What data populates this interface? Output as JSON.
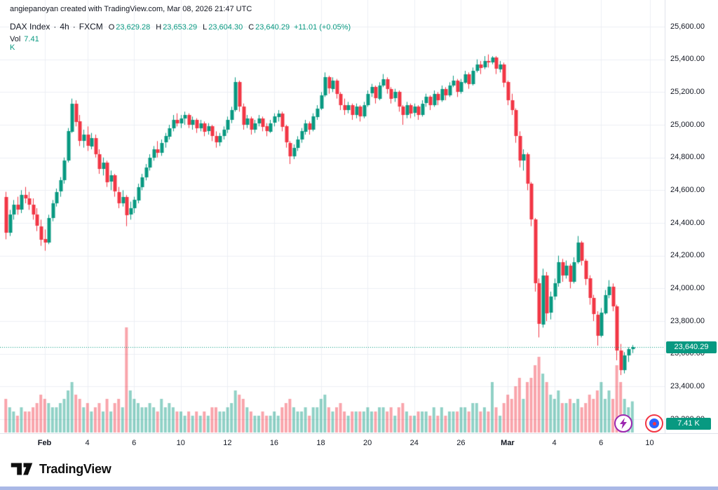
{
  "attribution": "angiepanoyan created with TradingView.com, Mar 08, 2026 21:47 UTC",
  "legend": {
    "symbol": "DAX Index",
    "separator": "·",
    "interval": "4h",
    "exchange": "FXCM",
    "ohlc": [
      {
        "label": "O",
        "value": "23,629.28"
      },
      {
        "label": "H",
        "value": "23,653.29"
      },
      {
        "label": "L",
        "value": "23,604.30"
      },
      {
        "label": "C",
        "value": "23,640.29"
      }
    ],
    "change": "+11.01 (+0.05%)",
    "volume_label": "Vol",
    "volume_value": "7.41 K"
  },
  "footer": {
    "brand": "TradingView"
  },
  "colors": {
    "up": "#089981",
    "down": "#f23645",
    "vol_up": "rgba(8,153,129,0.45)",
    "vol_down": "rgba(242,54,69,0.45)",
    "grid": "#eceff4",
    "axis_line": "#e0e3eb",
    "badge": "#089981"
  },
  "chart_data": {
    "type": "candlestick",
    "title": "DAX Index · 4h · FXCM",
    "last_open": 23629.28,
    "last_high": 23653.29,
    "last_low": 23604.3,
    "last_close": 23640.29,
    "last_change": "+11.01 (+0.05%)",
    "last_close_label": "23,640.29",
    "volume_badge_label": "7.41 K",
    "last_volume_k": 7.41,
    "ylim": [
      23200,
      25600
    ],
    "volume_unit": "K",
    "price_ticks": {
      "values": [
        25600,
        25400,
        25200,
        25000,
        24800,
        24600,
        24400,
        24200,
        24000,
        23800,
        23600,
        23400,
        23200
      ],
      "labels": [
        "25,600.00",
        "25,400.00",
        "25,200.00",
        "25,000.00",
        "24,800.00",
        "24,600.00",
        "24,400.00",
        "24,200.00",
        "24,000.00",
        "23,800.00",
        "23,600.00",
        "23,400.00",
        "23,200.00"
      ]
    },
    "time_ticks": [
      {
        "label": "Feb",
        "bar": 10,
        "major": true
      },
      {
        "label": "4",
        "bar": 21
      },
      {
        "label": "6",
        "bar": 33
      },
      {
        "label": "10",
        "bar": 45
      },
      {
        "label": "12",
        "bar": 57
      },
      {
        "label": "16",
        "bar": 69
      },
      {
        "label": "18",
        "bar": 81
      },
      {
        "label": "20",
        "bar": 93
      },
      {
        "label": "24",
        "bar": 105
      },
      {
        "label": "26",
        "bar": 117
      },
      {
        "label": "Mar",
        "bar": 129,
        "major": true
      },
      {
        "label": "4",
        "bar": 141
      },
      {
        "label": "6",
        "bar": 153
      },
      {
        "label": "10",
        "bar": 165.5
      }
    ],
    "candles_format": [
      "open",
      "high",
      "low",
      "close",
      "volume_k"
    ],
    "candles": [
      [
        24560,
        24590,
        24300,
        24340,
        8
      ],
      [
        24340,
        24480,
        24320,
        24450,
        6
      ],
      [
        24450,
        24540,
        24420,
        24510,
        5
      ],
      [
        24510,
        24560,
        24450,
        24480,
        4
      ],
      [
        24480,
        24600,
        24460,
        24570,
        6
      ],
      [
        24570,
        24620,
        24520,
        24550,
        5
      ],
      [
        24550,
        24590,
        24480,
        24510,
        5
      ],
      [
        24510,
        24550,
        24420,
        24450,
        6
      ],
      [
        24450,
        24490,
        24350,
        24380,
        7
      ],
      [
        24380,
        24420,
        24260,
        24300,
        9
      ],
      [
        24300,
        24360,
        24230,
        24280,
        8
      ],
      [
        24280,
        24450,
        24270,
        24430,
        7
      ],
      [
        24430,
        24540,
        24410,
        24520,
        6
      ],
      [
        24520,
        24610,
        24500,
        24590,
        6
      ],
      [
        24590,
        24680,
        24560,
        24660,
        7
      ],
      [
        24660,
        24800,
        24640,
        24780,
        8
      ],
      [
        24780,
        24980,
        24770,
        24960,
        10
      ],
      [
        24960,
        25160,
        24950,
        25130,
        12
      ],
      [
        25130,
        25150,
        24990,
        25020,
        9
      ],
      [
        25020,
        25060,
        24870,
        24900,
        8
      ],
      [
        24900,
        24970,
        24860,
        24940,
        6
      ],
      [
        24940,
        24990,
        24840,
        24870,
        7
      ],
      [
        24870,
        24950,
        24850,
        24920,
        5
      ],
      [
        24920,
        24940,
        24800,
        24820,
        6
      ],
      [
        24820,
        24850,
        24700,
        24730,
        7
      ],
      [
        24730,
        24800,
        24690,
        24770,
        5
      ],
      [
        24770,
        24780,
        24620,
        24650,
        8
      ],
      [
        24650,
        24720,
        24600,
        24690,
        5
      ],
      [
        24690,
        24700,
        24560,
        24590,
        7
      ],
      [
        24590,
        24620,
        24490,
        24520,
        8
      ],
      [
        24520,
        24600,
        24500,
        24560,
        6
      ],
      [
        24560,
        24570,
        24380,
        24450,
        25
      ],
      [
        24450,
        24530,
        24420,
        24490,
        10
      ],
      [
        24490,
        24560,
        24460,
        24540,
        8
      ],
      [
        24540,
        24640,
        24520,
        24620,
        7
      ],
      [
        24620,
        24700,
        24600,
        24680,
        6
      ],
      [
        24680,
        24760,
        24660,
        24740,
        6
      ],
      [
        24740,
        24820,
        24720,
        24800,
        7
      ],
      [
        24800,
        24870,
        24780,
        24850,
        6
      ],
      [
        24850,
        24900,
        24800,
        24830,
        5
      ],
      [
        24830,
        24910,
        24810,
        24890,
        8
      ],
      [
        24890,
        24950,
        24860,
        24930,
        6
      ],
      [
        24930,
        25000,
        24910,
        24980,
        7
      ],
      [
        24980,
        25060,
        24960,
        25030,
        6
      ],
      [
        25030,
        25070,
        24990,
        25010,
        5
      ],
      [
        25010,
        25060,
        24980,
        25040,
        5
      ],
      [
        25040,
        25080,
        25000,
        25060,
        4
      ],
      [
        25060,
        25070,
        24980,
        25000,
        5
      ],
      [
        25000,
        25050,
        24970,
        25030,
        4
      ],
      [
        25030,
        25040,
        24950,
        24980,
        5
      ],
      [
        24980,
        25030,
        24960,
        25010,
        4
      ],
      [
        25010,
        25020,
        24930,
        24960,
        5
      ],
      [
        24960,
        25010,
        24940,
        24990,
        4
      ],
      [
        24990,
        25000,
        24900,
        24930,
        6
      ],
      [
        24930,
        24960,
        24860,
        24890,
        6
      ],
      [
        24890,
        24950,
        24870,
        24930,
        5
      ],
      [
        24930,
        24990,
        24910,
        24970,
        5
      ],
      [
        24970,
        25050,
        24950,
        25030,
        6
      ],
      [
        25030,
        25110,
        25010,
        25090,
        7
      ],
      [
        25090,
        25290,
        25080,
        25260,
        10
      ],
      [
        25260,
        25270,
        25080,
        25110,
        9
      ],
      [
        25110,
        25130,
        24970,
        25000,
        8
      ],
      [
        25000,
        25060,
        24980,
        25040,
        6
      ],
      [
        25040,
        25050,
        24940,
        24970,
        5
      ],
      [
        24970,
        25030,
        24950,
        25010,
        4
      ],
      [
        25010,
        25060,
        24990,
        25040,
        4
      ],
      [
        25040,
        25050,
        24960,
        24990,
        5
      ],
      [
        24990,
        25010,
        24930,
        24960,
        4
      ],
      [
        24960,
        25030,
        24950,
        25010,
        4
      ],
      [
        25010,
        25070,
        24990,
        25050,
        5
      ],
      [
        25050,
        25090,
        25020,
        25070,
        4
      ],
      [
        25070,
        25080,
        24960,
        24990,
        6
      ],
      [
        24990,
        25000,
        24860,
        24890,
        7
      ],
      [
        24890,
        24900,
        24760,
        24810,
        8
      ],
      [
        24810,
        24880,
        24790,
        24860,
        6
      ],
      [
        24860,
        24930,
        24840,
        24910,
        5
      ],
      [
        24910,
        24980,
        24890,
        24960,
        5
      ],
      [
        24960,
        25030,
        24940,
        25010,
        6
      ],
      [
        25010,
        25020,
        24940,
        24970,
        4
      ],
      [
        24970,
        25070,
        24960,
        25050,
        6
      ],
      [
        25050,
        25120,
        25030,
        25100,
        6
      ],
      [
        25100,
        25200,
        25090,
        25180,
        8
      ],
      [
        25180,
        25320,
        25170,
        25290,
        9
      ],
      [
        25290,
        25300,
        25190,
        25220,
        6
      ],
      [
        25220,
        25290,
        25200,
        25270,
        5
      ],
      [
        25270,
        25280,
        25160,
        25190,
        6
      ],
      [
        25190,
        25200,
        25090,
        25120,
        7
      ],
      [
        25120,
        25160,
        25060,
        25090,
        5
      ],
      [
        25090,
        25140,
        25070,
        25120,
        4
      ],
      [
        25120,
        25130,
        25030,
        25060,
        5
      ],
      [
        25060,
        25130,
        25040,
        25110,
        5
      ],
      [
        25110,
        25120,
        25020,
        25050,
        5
      ],
      [
        25050,
        25140,
        25040,
        25120,
        5
      ],
      [
        25120,
        25210,
        25110,
        25190,
        6
      ],
      [
        25190,
        25250,
        25170,
        25230,
        5
      ],
      [
        25230,
        25240,
        25130,
        25160,
        5
      ],
      [
        25160,
        25260,
        25150,
        25240,
        6
      ],
      [
        25240,
        25310,
        25230,
        25280,
        6
      ],
      [
        25280,
        25290,
        25190,
        25220,
        5
      ],
      [
        25220,
        25230,
        25130,
        25160,
        6
      ],
      [
        25160,
        25220,
        25140,
        25200,
        4
      ],
      [
        25200,
        25210,
        25080,
        25110,
        6
      ],
      [
        25110,
        25120,
        25000,
        25060,
        7
      ],
      [
        25060,
        25140,
        25040,
        25120,
        5
      ],
      [
        25120,
        25130,
        25040,
        25070,
        4
      ],
      [
        25070,
        25130,
        25050,
        25110,
        4
      ],
      [
        25110,
        25120,
        25030,
        25060,
        5
      ],
      [
        25060,
        25150,
        25050,
        25130,
        5
      ],
      [
        25130,
        25190,
        25110,
        25170,
        5
      ],
      [
        25170,
        25180,
        25090,
        25120,
        4
      ],
      [
        25120,
        25210,
        25110,
        25190,
        6
      ],
      [
        25190,
        25200,
        25120,
        25150,
        4
      ],
      [
        25150,
        25240,
        25140,
        25220,
        6
      ],
      [
        25220,
        25230,
        25150,
        25180,
        4
      ],
      [
        25180,
        25260,
        25170,
        25240,
        5
      ],
      [
        25240,
        25300,
        25230,
        25270,
        5
      ],
      [
        25270,
        25280,
        25170,
        25200,
        5
      ],
      [
        25200,
        25280,
        25190,
        25260,
        6
      ],
      [
        25260,
        25330,
        25250,
        25310,
        6
      ],
      [
        25310,
        25320,
        25220,
        25250,
        5
      ],
      [
        25250,
        25350,
        25240,
        25330,
        7
      ],
      [
        25330,
        25400,
        25320,
        25370,
        7
      ],
      [
        25370,
        25390,
        25310,
        25350,
        5
      ],
      [
        25350,
        25420,
        25340,
        25390,
        6
      ],
      [
        25390,
        25430,
        25350,
        25380,
        5
      ],
      [
        25380,
        25420,
        25370,
        25410,
        12
      ],
      [
        25410,
        25420,
        25310,
        25340,
        6
      ],
      [
        25340,
        25390,
        25320,
        25370,
        4
      ],
      [
        25370,
        25380,
        25230,
        25260,
        7
      ],
      [
        25260,
        25270,
        25120,
        25150,
        9
      ],
      [
        25150,
        25190,
        25060,
        25090,
        8
      ],
      [
        25090,
        25100,
        24890,
        24930,
        11
      ],
      [
        24930,
        24960,
        24740,
        24780,
        13
      ],
      [
        24780,
        24850,
        24720,
        24820,
        8
      ],
      [
        24820,
        24830,
        24600,
        24640,
        12
      ],
      [
        24640,
        24650,
        24380,
        24420,
        13
      ],
      [
        24420,
        24430,
        23980,
        24030,
        16
      ],
      [
        24030,
        24060,
        23700,
        23780,
        18
      ],
      [
        23780,
        24120,
        23760,
        24080,
        14
      ],
      [
        24080,
        24100,
        23800,
        23850,
        12
      ],
      [
        23850,
        23980,
        23810,
        23950,
        9
      ],
      [
        23950,
        24060,
        23930,
        24030,
        8
      ],
      [
        24030,
        24200,
        24010,
        24160,
        10
      ],
      [
        24160,
        24180,
        24040,
        24080,
        7
      ],
      [
        24080,
        24170,
        24060,
        24140,
        7
      ],
      [
        24140,
        24150,
        24000,
        24040,
        8
      ],
      [
        24040,
        24190,
        24030,
        24160,
        7
      ],
      [
        24160,
        24320,
        24150,
        24280,
        8
      ],
      [
        24280,
        24290,
        24140,
        24170,
        6
      ],
      [
        24170,
        24180,
        24020,
        24060,
        7
      ],
      [
        24060,
        24080,
        23900,
        23940,
        9
      ],
      [
        23940,
        23960,
        23800,
        23840,
        8
      ],
      [
        23840,
        23860,
        23650,
        23710,
        10
      ],
      [
        23710,
        23880,
        23700,
        23850,
        12
      ],
      [
        23850,
        23990,
        23840,
        23960,
        8
      ],
      [
        23960,
        24050,
        23940,
        24010,
        10
      ],
      [
        24010,
        24030,
        23860,
        23890,
        8
      ],
      [
        23890,
        23900,
        23560,
        23620,
        16
      ],
      [
        23620,
        23660,
        23470,
        23500,
        12
      ],
      [
        23500,
        23610,
        23480,
        23590,
        8
      ],
      [
        23590,
        23640,
        23550,
        23629,
        6
      ],
      [
        23629.28,
        23653.29,
        23604.3,
        23640.29,
        7.41
      ]
    ]
  }
}
